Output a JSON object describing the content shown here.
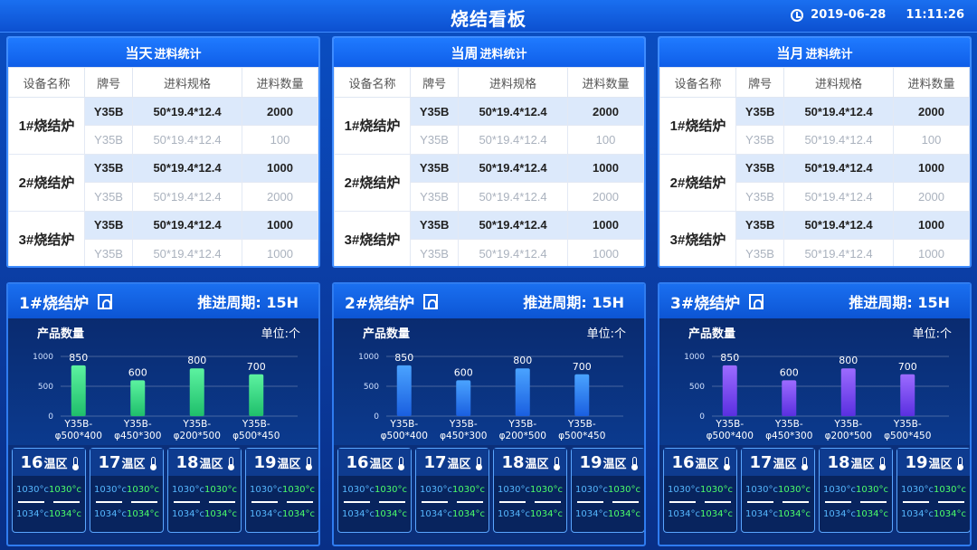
{
  "header": {
    "title": "烧结看板",
    "date": "2019-06-28",
    "time": "11:11:26"
  },
  "colors": {
    "blue_bar": "#2f7cf0",
    "green_bar": "#35e27c",
    "purple_bar": "#7a45ff"
  },
  "columns": [
    "设备名称",
    "牌号",
    "进料规格",
    "进料数量"
  ],
  "panels": [
    {
      "title_big": "当天",
      "title_small": "进料统计"
    },
    {
      "title_big": "当周",
      "title_small": "进料统计"
    },
    {
      "title_big": "当月",
      "title_small": "进料统计"
    }
  ],
  "rows": [
    {
      "device": "1#烧结炉",
      "lines": [
        {
          "grade": "Y35B",
          "spec": "50*19.4*12.4",
          "qty": "2000"
        },
        {
          "grade": "Y35B",
          "spec": "50*19.4*12.4",
          "qty": "100"
        }
      ]
    },
    {
      "device": "2#烧结炉",
      "lines": [
        {
          "grade": "Y35B",
          "spec": "50*19.4*12.4",
          "qty": "1000"
        },
        {
          "grade": "Y35B",
          "spec": "50*19.4*12.4",
          "qty": "2000"
        }
      ]
    },
    {
      "device": "3#烧结炉",
      "lines": [
        {
          "grade": "Y35B",
          "spec": "50*19.4*12.4",
          "qty": "1000"
        },
        {
          "grade": "Y35B",
          "spec": "50*19.4*12.4",
          "qty": "1000"
        }
      ]
    }
  ],
  "furnaces": [
    {
      "name": "1#烧结炉",
      "cycle": "推进周期: 15H",
      "color": "green"
    },
    {
      "name": "2#烧结炉",
      "cycle": "推进周期: 15H",
      "color": "blue"
    },
    {
      "name": "3#烧结炉",
      "cycle": "推进周期: 15H",
      "color": "purple"
    }
  ],
  "chart_data": {
    "type": "bar",
    "title": "产品数量",
    "unit": "单位:个",
    "ylim": [
      0,
      1000
    ],
    "yticks": [
      0,
      500,
      1000
    ],
    "categories": [
      "Y35B-φ500*400",
      "Y35B-φ450*300",
      "Y35B-φ200*500",
      "Y35B-φ500*450"
    ],
    "category_lines": [
      [
        "Y35B-",
        "φ500*400"
      ],
      [
        "Y35B-",
        "φ450*300"
      ],
      [
        "Y35B-",
        "φ200*500"
      ],
      [
        "Y35B-",
        "φ500*450"
      ]
    ],
    "values": [
      850,
      600,
      800,
      700
    ]
  },
  "zones": [
    {
      "num": "16",
      "label": "温区",
      "t1": "1030°c",
      "t2": "1030°c",
      "t3": "1034°c",
      "t4": "1034°c"
    },
    {
      "num": "17",
      "label": "温区",
      "t1": "1030°c",
      "t2": "1030°c",
      "t3": "1034°c",
      "t4": "1034°c"
    },
    {
      "num": "18",
      "label": "温区",
      "t1": "1030°c",
      "t2": "1030°c",
      "t3": "1034°c",
      "t4": "1034°c"
    },
    {
      "num": "19",
      "label": "温区",
      "t1": "1030°c",
      "t2": "1030°c",
      "t3": "1034°c",
      "t4": "1034°c"
    }
  ]
}
